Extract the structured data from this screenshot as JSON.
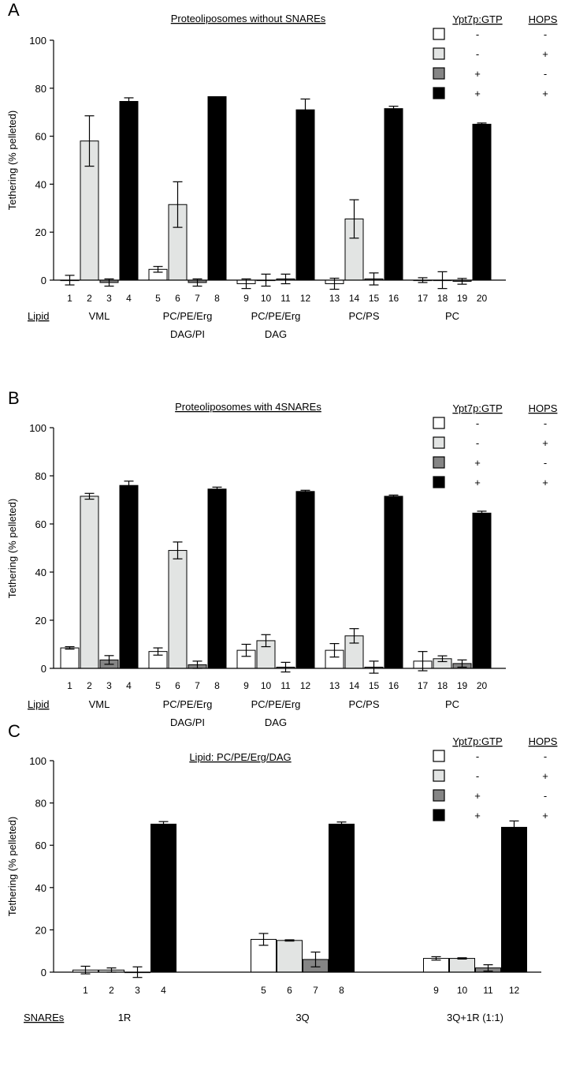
{
  "legend_header": {
    "ypt7p": "Ypt7p:GTP",
    "hops": "HOPS"
  },
  "legend_rows": [
    {
      "color": "#ffffff",
      "ypt7p": "-",
      "hops": "-"
    },
    {
      "color": "#e2e4e3",
      "ypt7p": "-",
      "hops": "+"
    },
    {
      "color": "#858585",
      "ypt7p": "+",
      "hops": "-"
    },
    {
      "color": "#000000",
      "ypt7p": "+",
      "hops": "+"
    }
  ],
  "chart_data": [
    {
      "panel_letter": "A",
      "type": "bar",
      "title": "Proteoliposomes without SNAREs",
      "ylabel": "Tethering (% pelleted)",
      "ylim": [
        0,
        100
      ],
      "yticks": [
        "0",
        "20",
        "40",
        "60",
        "80",
        "100"
      ],
      "group_axis_label": "Lipid",
      "groups": [
        {
          "label": [
            "VML"
          ],
          "bar_numbers": [
            "1",
            "2",
            "3",
            "4"
          ],
          "values": [
            0,
            58,
            -1,
            74.5
          ],
          "errors": [
            2,
            10.5,
            1.5,
            1.5
          ]
        },
        {
          "label": [
            "PC/PE/Erg",
            "DAG/PI"
          ],
          "bar_numbers": [
            "5",
            "6",
            "7",
            "8"
          ],
          "values": [
            4.5,
            31.5,
            -1,
            76.5
          ],
          "errors": [
            1.2,
            9.5,
            1.5,
            0
          ]
        },
        {
          "label": [
            "PC/PE/Erg",
            "DAG"
          ],
          "bar_numbers": [
            "9",
            "10",
            "11",
            "12"
          ],
          "values": [
            -1.5,
            0,
            0.5,
            71
          ],
          "errors": [
            2,
            2.5,
            2,
            4.5
          ]
        },
        {
          "label": [
            "PC/PS"
          ],
          "bar_numbers": [
            "13",
            "14",
            "15",
            "16"
          ],
          "values": [
            -1.5,
            25.5,
            0.5,
            71.5
          ],
          "errors": [
            2.3,
            8,
            2.5,
            1
          ]
        },
        {
          "label": [
            "PC"
          ],
          "bar_numbers": [
            "17",
            "18",
            "19",
            "20"
          ],
          "values": [
            0,
            0,
            -0.5,
            65
          ],
          "errors": [
            1,
            3.5,
            1.2,
            0.5
          ]
        }
      ]
    },
    {
      "panel_letter": "B",
      "type": "bar",
      "title": "Proteoliposomes with 4SNAREs",
      "ylabel": "Tethering (% pelleted)",
      "ylim": [
        0,
        100
      ],
      "yticks": [
        "0",
        "20",
        "40",
        "60",
        "80",
        "100"
      ],
      "group_axis_label": "Lipid",
      "groups": [
        {
          "label": [
            "VML"
          ],
          "bar_numbers": [
            "1",
            "2",
            "3",
            "4"
          ],
          "values": [
            8.5,
            71.5,
            3.5,
            76
          ],
          "errors": [
            0.5,
            1.2,
            1.8,
            1.8
          ]
        },
        {
          "label": [
            "PC/PE/Erg",
            "DAG/PI"
          ],
          "bar_numbers": [
            "5",
            "6",
            "7",
            "8"
          ],
          "values": [
            7,
            49,
            1.5,
            74.5
          ],
          "errors": [
            1.5,
            3.5,
            1.5,
            0.8
          ]
        },
        {
          "label": [
            "PC/PE/Erg",
            "DAG"
          ],
          "bar_numbers": [
            "9",
            "10",
            "11",
            "12"
          ],
          "values": [
            7.5,
            11.5,
            0.5,
            73.5
          ],
          "errors": [
            2.5,
            2.5,
            2,
            0.5
          ]
        },
        {
          "label": [
            "PC/PS"
          ],
          "bar_numbers": [
            "13",
            "14",
            "15",
            "16"
          ],
          "values": [
            7.5,
            13.5,
            0.5,
            71.5
          ],
          "errors": [
            2.8,
            3,
            2.5,
            0.5
          ]
        },
        {
          "label": [
            "PC"
          ],
          "bar_numbers": [
            "17",
            "18",
            "19",
            "20"
          ],
          "values": [
            3,
            4,
            2,
            64.5
          ],
          "errors": [
            4,
            1.2,
            1.5,
            0.8
          ]
        }
      ]
    },
    {
      "panel_letter": "C",
      "type": "bar",
      "title": "Lipid:  PC/PE/Erg/DAG",
      "ylabel": "Tethering (% pelleted)",
      "ylim": [
        0,
        100
      ],
      "yticks": [
        "0",
        "20",
        "40",
        "60",
        "80",
        "100"
      ],
      "group_axis_label": "SNAREs",
      "groups": [
        {
          "label": [
            "1R"
          ],
          "bar_numbers": [
            "1",
            "2",
            "3",
            "4"
          ],
          "values": [
            1,
            1,
            0,
            70
          ],
          "errors": [
            1.8,
            1,
            2.5,
            1.2
          ]
        },
        {
          "label": [
            "3Q"
          ],
          "bar_numbers": [
            "5",
            "6",
            "7",
            "8"
          ],
          "values": [
            15.5,
            15,
            6,
            70
          ],
          "errors": [
            2.8,
            0.3,
            3.5,
            1
          ]
        },
        {
          "label": [
            "3Q+1R (1:1)"
          ],
          "bar_numbers": [
            "9",
            "10",
            "11",
            "12"
          ],
          "values": [
            6.5,
            6.5,
            2,
            68.5
          ],
          "errors": [
            0.8,
            0.3,
            1.5,
            3
          ]
        }
      ]
    }
  ]
}
